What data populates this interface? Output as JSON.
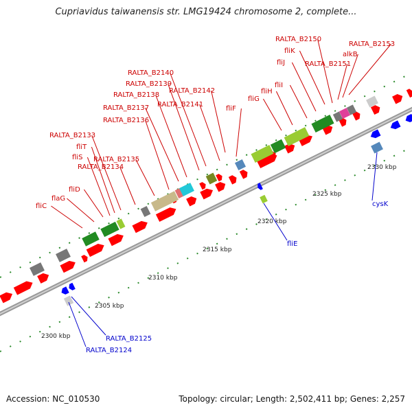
{
  "title": "Cupriavidus taiwanensis str. LMG19424 chromosome 2, complete...",
  "footer": {
    "accession": "Accession: NC_010530",
    "summary": "Topology: circular; Length: 2,502,411 bp; Genes: 2,257"
  },
  "colors": {
    "forward_cds": "#ff0000",
    "reverse_cds": "#0000ff",
    "backbone": "#999999",
    "label_forward": "#cc0000",
    "label_reverse": "#0000cc",
    "cog_green": "#228b22",
    "cog_lightgreen": "#99cc33",
    "cog_gray": "#777777",
    "cog_tan": "#c8b98a",
    "cog_cyan": "#22c8d8",
    "cog_steel": "#5588bb",
    "cog_magenta": "#e0409a",
    "cog_olive": "#778822",
    "cog_pink": "#e07070"
  },
  "scale_ticks": [
    "2300 kbp",
    "2305 kbp",
    "2310 kbp",
    "2315 kbp",
    "2320 kbp",
    "2325 kbp",
    "2330 kbp"
  ],
  "forward_labels": [
    "fliC",
    "flaG",
    "fliD",
    "fliS",
    "fliT",
    "RALTA_B2133",
    "RALTA_B2134",
    "RALTA_B2135",
    "RALTA_B2136",
    "RALTA_B2137",
    "RALTA_B2138",
    "RALTA_B2139",
    "RALTA_B2140",
    "RALTA_B2141",
    "RALTA_B2142",
    "fliF",
    "fliG",
    "fliH",
    "fliI",
    "fliJ",
    "fliK",
    "RALTA_B2150",
    "RALTA_B2151",
    "alkB",
    "RALTA_B2153"
  ],
  "reverse_labels": [
    "RALTA_B2124",
    "RALTA_B2125",
    "fliE",
    "cysK"
  ]
}
